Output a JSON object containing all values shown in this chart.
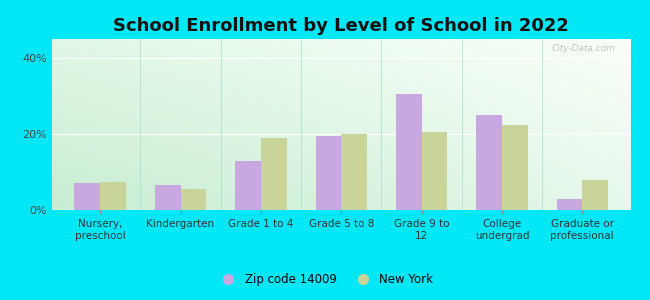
{
  "title": "School Enrollment by Level of School in 2022",
  "categories": [
    "Nursery,\npreschool",
    "Kindergarten",
    "Grade 1 to 4",
    "Grade 5 to 8",
    "Grade 9 to\n12",
    "College\nundergrad",
    "Graduate or\nprofessional"
  ],
  "zip_values": [
    7.0,
    6.5,
    13.0,
    19.5,
    30.5,
    25.0,
    3.0
  ],
  "ny_values": [
    7.5,
    5.5,
    19.0,
    20.0,
    20.5,
    22.5,
    8.0
  ],
  "zip_color": "#c9a8e0",
  "ny_color": "#c8d49a",
  "background_outer": "#00e8f8",
  "yticks": [
    0,
    20,
    40
  ],
  "ylabel_ticks": [
    "0%",
    "20%",
    "40%"
  ],
  "ylim": [
    0,
    45
  ],
  "legend_zip_label": "Zip code 14009",
  "legend_ny_label": "New York",
  "watermark": "City-Data.com",
  "bar_width": 0.32,
  "title_fontsize": 13,
  "tick_fontsize": 7.5,
  "bg_top_left": "#caebd8",
  "bg_top_right": "#f0f8ee",
  "bg_bottom_left": "#b8e8cc",
  "bg_bottom_right": "#e8f5e5"
}
